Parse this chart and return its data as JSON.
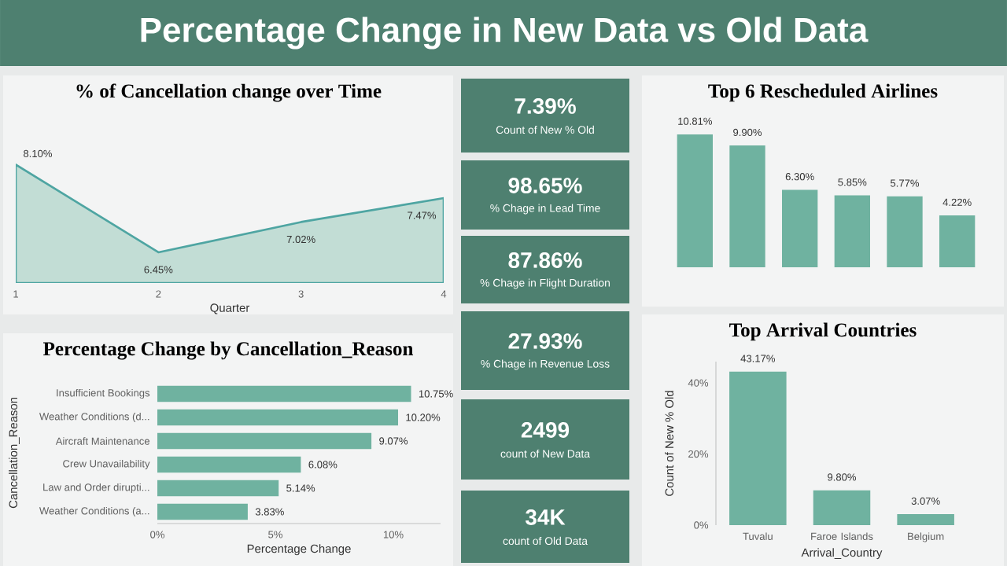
{
  "chart_data": [
    {
      "type": "other",
      "title": "Percentage Change in New Data vs Old Data",
      "color": "#4e8070",
      "annotations": [
        "7.39%",
        "Count of New % Old",
        "98.65%",
        "% Chage in Lead Time",
        "87.86%",
        "% Chage in Flight Duration",
        "27.93%",
        "% Chage in Revenue Loss",
        "2499",
        "count of New Data",
        "34K",
        "count of Old Data"
      ]
    },
    {
      "type": "area",
      "title": "% of Cancellation change over Time",
      "xlabel": "Quarter",
      "categories": [
        "1",
        "2",
        "3",
        "4"
      ],
      "color": "#c2ddd5",
      "values": [
        8.1,
        6.45,
        7.02,
        7.47
      ],
      "value_labels": [
        "8.10%",
        "6.45%",
        "7.02%",
        "7.47%"
      ],
      "tick_labels": "x"
    },
    {
      "type": "bar",
      "orientation": "horizontal",
      "title": "Percentage Change by Cancellation_Reason",
      "xlabel": "Percentage Change",
      "ylabel": "Cancellation_Reason",
      "color": "#6fb2a0",
      "categories": [
        "Insufficient Bookings",
        "Weather Conditions (d...",
        "Aircraft Maintenance",
        "Crew Unavailability",
        "Law and Order dirupti...",
        "Weather Conditions (a..."
      ],
      "values": [
        10.75,
        10.2,
        9.07,
        6.08,
        5.14,
        3.83
      ],
      "value_labels": [
        "10.75%",
        "10.20%",
        "9.07%",
        "6.08%",
        "5.14%",
        "3.83%"
      ],
      "xlim": [
        0,
        12
      ],
      "xticks": [
        {
          "value": 0,
          "label": "0%"
        },
        {
          "value": 5,
          "label": "5%"
        },
        {
          "value": 10,
          "label": "10%"
        }
      ]
    },
    {
      "type": "bar",
      "title": "Top 6 Rescheduled Airlines",
      "color": "#6fb2a0",
      "categories": [
        null,
        null,
        null,
        null,
        null,
        null
      ],
      "values": [
        10.81,
        9.9,
        6.3,
        5.85,
        5.77,
        4.22
      ],
      "value_labels": [
        "10.81%",
        "9.90%",
        "6.30%",
        "5.85%",
        "5.77%",
        "4.22%"
      ],
      "tick_labels": false
    },
    {
      "type": "bar",
      "title": "Top Arrival Countries",
      "xlabel": "Arrival_Country",
      "ylabel": "Count of New % Old",
      "color": "#6fb2a0",
      "categories": [
        "Tuvalu",
        "Faroe Islands",
        "Belgium"
      ],
      "values": [
        43.17,
        9.8,
        3.07
      ],
      "value_labels": [
        "43.17%",
        "9.80%",
        "3.07%"
      ],
      "ylim": [
        0,
        46
      ],
      "yticks": [
        {
          "value": 0,
          "label": "0%"
        },
        {
          "value": 20,
          "label": "20%"
        },
        {
          "value": 40,
          "label": "40%"
        }
      ]
    }
  ]
}
